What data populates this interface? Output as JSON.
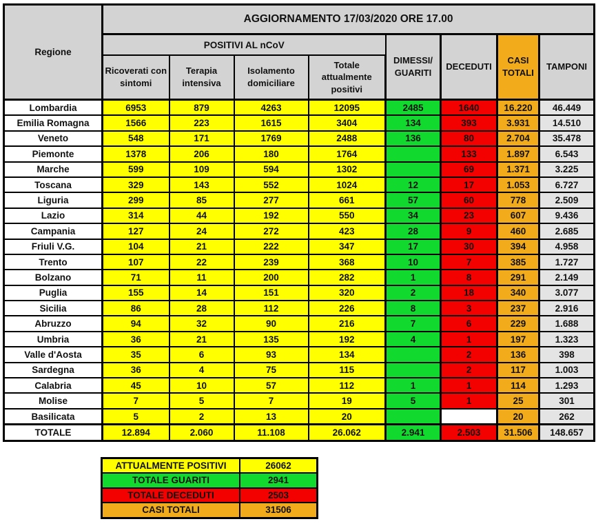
{
  "chart_data": {
    "type": "table",
    "title": "AGGIORNAMENTO 17/03/2020 ORE 17.00",
    "column_group_label": "POSITIVI AL nCoV",
    "columns": [
      "Regione",
      "Ricoverati con sintomi",
      "Terapia intensiva",
      "Isolamento domiciliare",
      "Totale attualmente positivi",
      "DIMESSI/\nGUARITI",
      "DECEDUTI",
      "CASI\nTOTALI",
      "TAMPONI"
    ],
    "rows": [
      [
        "Lombardia",
        "6953",
        "879",
        "4263",
        "12095",
        "2485",
        "1640",
        "16.220",
        "46.449"
      ],
      [
        "Emilia Romagna",
        "1566",
        "223",
        "1615",
        "3404",
        "134",
        "393",
        "3.931",
        "14.510"
      ],
      [
        "Veneto",
        "548",
        "171",
        "1769",
        "2488",
        "136",
        "80",
        "2.704",
        "35.478"
      ],
      [
        "Piemonte",
        "1378",
        "206",
        "180",
        "1764",
        "",
        "133",
        "1.897",
        "6.543"
      ],
      [
        "Marche",
        "599",
        "109",
        "594",
        "1302",
        "",
        "69",
        "1.371",
        "3.225"
      ],
      [
        "Toscana",
        "329",
        "143",
        "552",
        "1024",
        "12",
        "17",
        "1.053",
        "6.727"
      ],
      [
        "Liguria",
        "299",
        "85",
        "277",
        "661",
        "57",
        "60",
        "778",
        "2.509"
      ],
      [
        "Lazio",
        "314",
        "44",
        "192",
        "550",
        "34",
        "23",
        "607",
        "9.436"
      ],
      [
        "Campania",
        "127",
        "24",
        "272",
        "423",
        "28",
        "9",
        "460",
        "2.685"
      ],
      [
        "Friuli V.G.",
        "104",
        "21",
        "222",
        "347",
        "17",
        "30",
        "394",
        "4.958"
      ],
      [
        "Trento",
        "107",
        "22",
        "239",
        "368",
        "10",
        "7",
        "385",
        "1.727"
      ],
      [
        "Bolzano",
        "71",
        "11",
        "200",
        "282",
        "1",
        "8",
        "291",
        "2.149"
      ],
      [
        "Puglia",
        "155",
        "14",
        "151",
        "320",
        "2",
        "18",
        "340",
        "3.077"
      ],
      [
        "Sicilia",
        "86",
        "28",
        "112",
        "226",
        "8",
        "3",
        "237",
        "2.916"
      ],
      [
        "Abruzzo",
        "94",
        "32",
        "90",
        "216",
        "7",
        "6",
        "229",
        "1.688"
      ],
      [
        "Umbria",
        "36",
        "21",
        "135",
        "192",
        "4",
        "1",
        "197",
        "1.323"
      ],
      [
        "Valle d'Aosta",
        "35",
        "6",
        "93",
        "134",
        "",
        "2",
        "136",
        "398"
      ],
      [
        "Sardegna",
        "36",
        "4",
        "75",
        "115",
        "",
        "2",
        "117",
        "1.003"
      ],
      [
        "Calabria",
        "45",
        "10",
        "57",
        "112",
        "1",
        "1",
        "114",
        "1.293"
      ],
      [
        "Molise",
        "7",
        "5",
        "7",
        "19",
        "5",
        "1",
        "25",
        "301"
      ],
      [
        "Basilicata",
        "5",
        "2",
        "13",
        "20",
        "",
        "",
        "20",
        "262"
      ]
    ],
    "total_row": [
      "TOTALE",
      "12.894",
      "2.060",
      "11.108",
      "26.062",
      "2.941",
      "2.503",
      "31.506",
      "148.657"
    ],
    "empty_white_cells": [
      [
        20,
        6
      ]
    ]
  },
  "summary": {
    "rows": [
      {
        "label": "ATTUALMENTE POSITIVI",
        "value": "26062",
        "color_class": "c-yellow"
      },
      {
        "label": "TOTALE GUARITI",
        "value": "2941",
        "color_class": "c-green"
      },
      {
        "label": "TOTALE DECEDUTI",
        "value": "2503",
        "color_class": "c-red"
      },
      {
        "label": "CASI TOTALI",
        "value": "31506",
        "color_class": "c-orange"
      }
    ]
  },
  "colors": {
    "yellow": "#FFFF00",
    "green": "#12D92E",
    "red": "#F30000",
    "orange": "#F2AB1B",
    "header_gray": "#D3D3D3",
    "tamponi_gray": "#E4E4E4",
    "border_black": "#000000"
  }
}
